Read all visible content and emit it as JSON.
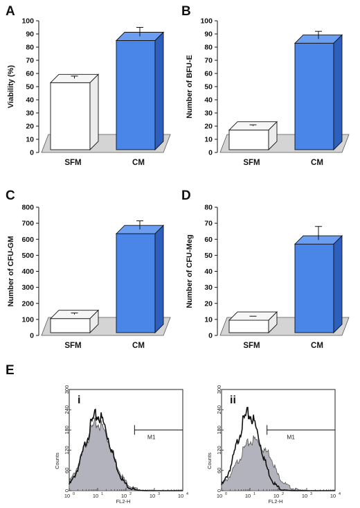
{
  "colors": {
    "cm_bar": "#4a86e8",
    "cm_side": "#2d5fbf",
    "cm_top": "#6b9df0",
    "sfm_bar": "#ffffff",
    "sfm_side": "#ececec",
    "sfm_top": "#f6f6f6",
    "floor": "#d4d4d4",
    "hist_fill": "#b3b3bd"
  },
  "panel_labels": [
    "A",
    "B",
    "C",
    "D",
    "E"
  ],
  "chart_data": [
    {
      "panel": "A",
      "type": "bar",
      "categories": [
        "SFM",
        "CM"
      ],
      "values": [
        53,
        85
      ],
      "errors": [
        5,
        10
      ],
      "ylabel": "Viability (%)",
      "ylim": [
        0,
        100
      ],
      "yticks": [
        "0",
        "10",
        "20",
        "30",
        "40",
        "50",
        "60",
        "70",
        "80",
        "90",
        "100"
      ]
    },
    {
      "panel": "B",
      "type": "bar",
      "categories": [
        "SFM",
        "CM"
      ],
      "values": [
        17,
        83
      ],
      "errors": [
        4,
        9
      ],
      "ylabel": "Number of BFU-E",
      "ylim": [
        0,
        100
      ],
      "yticks": [
        "0",
        "10",
        "20",
        "30",
        "40",
        "50",
        "60",
        "70",
        "80",
        "90",
        "100"
      ]
    },
    {
      "panel": "C",
      "type": "bar",
      "categories": [
        "SFM",
        "CM"
      ],
      "values": [
        105,
        635
      ],
      "errors": [
        35,
        80
      ],
      "ylabel": "Number of CFU-GM",
      "ylim": [
        0,
        800
      ],
      "yticks": [
        "0",
        "100",
        "200",
        "300",
        "400",
        "500",
        "600",
        "700",
        "800"
      ]
    },
    {
      "panel": "D",
      "type": "bar",
      "categories": [
        "SFM",
        "CM"
      ],
      "values": [
        9.5,
        57
      ],
      "errors": [
        2.5,
        11
      ],
      "ylabel": "Number of CFU-Meg",
      "ylim": [
        0,
        80
      ],
      "yticks": [
        "0",
        "10",
        "20",
        "30",
        "40",
        "50",
        "60",
        "70",
        "80"
      ]
    },
    {
      "panel": "E",
      "subpanel": "i",
      "type": "area",
      "xlabel": "FL2-H",
      "ylabel": "Counts",
      "xscale": "log",
      "xlim": [
        1,
        10000
      ],
      "ylim": [
        0,
        300
      ],
      "yticks": [
        "0",
        "60",
        "120",
        "180",
        "240",
        "300"
      ],
      "gate_label": "M1",
      "gate_from": 200,
      "gate_to": 10000,
      "gate_level": 180,
      "series": [
        {
          "role": "outline",
          "peak_x": 10,
          "peak_y": 222,
          "width": 0.45
        },
        {
          "role": "filled",
          "peak_x": 10,
          "peak_y": 198,
          "width": 0.5
        }
      ]
    },
    {
      "panel": "E",
      "subpanel": "ii",
      "type": "area",
      "xlabel": "FL2-H",
      "ylabel": "Counts",
      "xscale": "log",
      "xlim": [
        1,
        10000
      ],
      "ylim": [
        0,
        300
      ],
      "yticks": [
        "0",
        "60",
        "120",
        "180",
        "240",
        "300"
      ],
      "gate_label": "M1",
      "gate_from": 40,
      "gate_to": 10000,
      "gate_level": 180,
      "series": [
        {
          "role": "outline",
          "peak_x": 9,
          "peak_y": 225,
          "width": 0.42
        },
        {
          "role": "filled",
          "peak_x": 14,
          "peak_y": 150,
          "width": 0.55,
          "shoulder_x": 40,
          "shoulder_y": 115
        }
      ]
    }
  ]
}
